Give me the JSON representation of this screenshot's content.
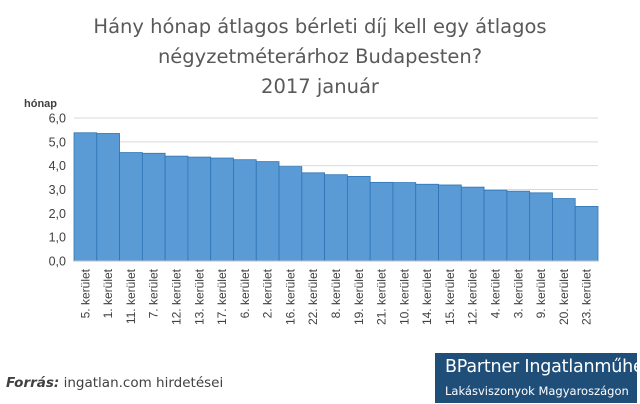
{
  "chart_data": {
    "type": "bar",
    "title": [
      "Hány hónap átlagos bérleti díj kell egy átlagos",
      "négyzetméterárhoz Budapesten?",
      "2017 január"
    ],
    "ylabel": "hónap",
    "xlabel": "",
    "ylim": [
      0,
      6
    ],
    "yticks": [
      "0,0",
      "1,0",
      "2,0",
      "3,0",
      "4,0",
      "5,0",
      "6,0"
    ],
    "categories": [
      "5. kerület",
      "1. kerület",
      "11. kerület",
      "7. kerület",
      "12. kerület",
      "13. kerület",
      "17. kerület",
      "6. kerület",
      "2. kerület",
      "16. kerület",
      "22. kerület",
      "8. kerület",
      "19. kerület",
      "21. kerület",
      "10. kerület",
      "14. kerület",
      "15. kerület",
      "12. kerület",
      "4. kerület",
      "3. kerület",
      "9. kerület",
      "20. kerület",
      "23. kerület"
    ],
    "values": [
      5.38,
      5.35,
      4.55,
      4.52,
      4.4,
      4.36,
      4.32,
      4.25,
      4.17,
      3.96,
      3.7,
      3.62,
      3.55,
      3.3,
      3.29,
      3.22,
      3.19,
      3.1,
      2.97,
      2.93,
      2.86,
      2.62,
      2.29
    ],
    "bar_color": "#5b9bd5",
    "bar_edge_color": "#2e75b6",
    "grid": true,
    "legend": "none"
  },
  "source": {
    "label": "Forrás:",
    "text": "ingatlan.com hirdetései"
  },
  "brand": {
    "name": "BPartner Ingatlanműhely",
    "subtitle": "Lakásviszonyok Magyaroszágon"
  }
}
